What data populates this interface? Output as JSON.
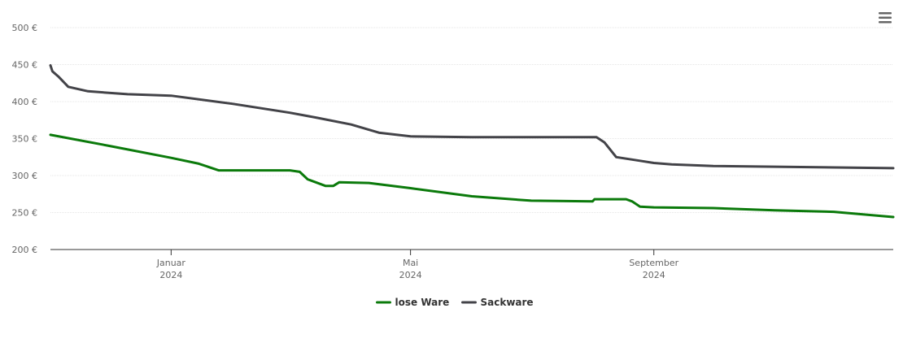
{
  "chart_data": {
    "type": "line",
    "title": "",
    "xlabel": "",
    "ylabel": "",
    "ylim": [
      200,
      500
    ],
    "y_ticks": [
      "200 €",
      "250 €",
      "300 €",
      "350 €",
      "400 €",
      "450 €",
      "500 €"
    ],
    "y_tick_values": [
      200,
      250,
      300,
      350,
      400,
      450,
      500
    ],
    "x_range": [
      "2023-11-01",
      "2024-12-31"
    ],
    "x_ticks": [
      {
        "date": "2024-01-01",
        "month": "Januar",
        "year": "2024"
      },
      {
        "date": "2024-05-01",
        "month": "Mai",
        "year": "2024"
      },
      {
        "date": "2024-09-01",
        "month": "September",
        "year": "2024"
      }
    ],
    "grid": true,
    "legend_position": "bottom-center",
    "series": [
      {
        "name": "lose Ware",
        "color": "#0b7a0b",
        "points": [
          [
            "2023-11-01",
            355
          ],
          [
            "2023-12-01",
            340
          ],
          [
            "2024-01-01",
            324
          ],
          [
            "2024-01-15",
            316
          ],
          [
            "2024-01-25",
            307
          ],
          [
            "2024-03-01",
            307
          ],
          [
            "2024-03-06",
            305
          ],
          [
            "2024-03-10",
            295
          ],
          [
            "2024-03-19",
            286
          ],
          [
            "2024-03-23",
            286
          ],
          [
            "2024-03-26",
            291
          ],
          [
            "2024-04-10",
            290
          ],
          [
            "2024-05-01",
            283
          ],
          [
            "2024-06-01",
            272
          ],
          [
            "2024-07-01",
            266
          ],
          [
            "2024-08-01",
            265
          ],
          [
            "2024-08-02",
            268
          ],
          [
            "2024-08-18",
            268
          ],
          [
            "2024-08-21",
            265
          ],
          [
            "2024-08-25",
            258
          ],
          [
            "2024-09-01",
            257
          ],
          [
            "2024-10-01",
            256
          ],
          [
            "2024-11-01",
            253
          ],
          [
            "2024-12-01",
            251
          ],
          [
            "2024-12-31",
            244
          ]
        ]
      },
      {
        "name": "Sackware",
        "color": "#434348",
        "points": [
          [
            "2023-11-01",
            449
          ],
          [
            "2023-11-02",
            441
          ],
          [
            "2023-11-05",
            434
          ],
          [
            "2023-11-10",
            420
          ],
          [
            "2023-11-20",
            414
          ],
          [
            "2023-12-10",
            410
          ],
          [
            "2024-01-01",
            408
          ],
          [
            "2024-02-01",
            397
          ],
          [
            "2024-03-01",
            385
          ],
          [
            "2024-03-15",
            378
          ],
          [
            "2024-04-01",
            369
          ],
          [
            "2024-04-15",
            358
          ],
          [
            "2024-05-01",
            353
          ],
          [
            "2024-06-01",
            352
          ],
          [
            "2024-07-01",
            352
          ],
          [
            "2024-08-03",
            352
          ],
          [
            "2024-08-07",
            345
          ],
          [
            "2024-08-13",
            325
          ],
          [
            "2024-08-25",
            320
          ],
          [
            "2024-09-01",
            317
          ],
          [
            "2024-09-10",
            315
          ],
          [
            "2024-10-01",
            313
          ],
          [
            "2024-11-01",
            312
          ],
          [
            "2024-12-31",
            310
          ]
        ]
      }
    ]
  }
}
